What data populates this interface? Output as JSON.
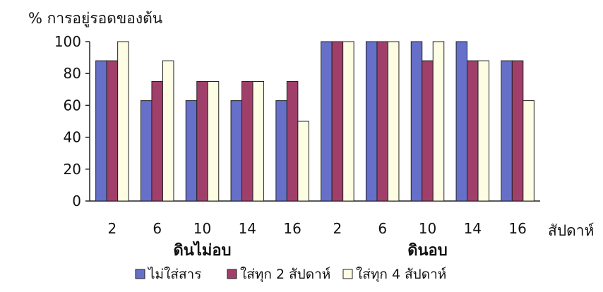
{
  "chart_data": {
    "type": "bar",
    "ylabel": "% การอยู่รอดของต้น",
    "xlabel": "สัปดาห์",
    "ylim": [
      0,
      100
    ],
    "yticks": [
      0,
      20,
      40,
      60,
      80,
      100
    ],
    "grid": false,
    "legend_position": "bottom",
    "groups": [
      {
        "label": "ดินไม่อบ",
        "categories": [
          "2",
          "6",
          "10",
          "14",
          "16"
        ]
      },
      {
        "label": "ดินอบ",
        "categories": [
          "2",
          "6",
          "10",
          "14",
          "16"
        ]
      }
    ],
    "categories": [
      "2",
      "6",
      "10",
      "14",
      "16",
      "2",
      "6",
      "10",
      "14",
      "16"
    ],
    "series": [
      {
        "name": "ไม่ใส่สาร",
        "color": "#6670c8",
        "values": [
          88,
          63,
          63,
          63,
          63,
          100,
          100,
          100,
          100,
          88
        ]
      },
      {
        "name": "ใส่ทุก 2 สัปดาห์",
        "color": "#a0406a",
        "values": [
          88,
          75,
          75,
          75,
          75,
          100,
          100,
          88,
          88,
          88
        ]
      },
      {
        "name": "ใส่ทุก 4 สัปดาห์",
        "color": "#fdfde4",
        "values": [
          100,
          88,
          75,
          75,
          50,
          100,
          100,
          100,
          88,
          63
        ]
      }
    ]
  }
}
